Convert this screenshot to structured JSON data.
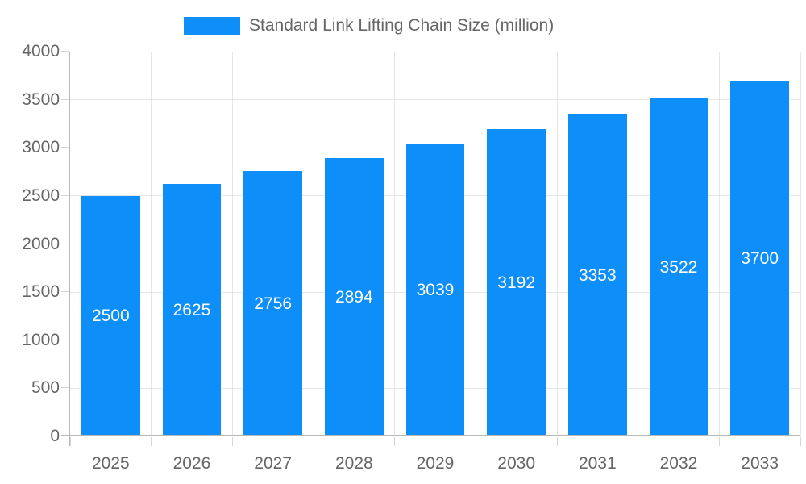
{
  "chart_data": {
    "type": "bar",
    "legend_label": "Standard Link Lifting Chain Size (million)",
    "legend_position": "top",
    "categories": [
      "2025",
      "2026",
      "2027",
      "2028",
      "2029",
      "2030",
      "2031",
      "2032",
      "2033"
    ],
    "values": [
      2500,
      2625,
      2756,
      2894,
      3039,
      3192,
      3353,
      3522,
      3700
    ],
    "title": "",
    "xlabel": "",
    "ylabel": "",
    "ylim": [
      0,
      4000
    ],
    "ytick_step": 500,
    "ytick_labels": [
      "0",
      "500",
      "1000",
      "1500",
      "2000",
      "2500",
      "3000",
      "3500",
      "4000"
    ],
    "grid": true,
    "bar_label_position": "inside-center",
    "colors": {
      "bar": "#0d8ef8",
      "bar_label": "#ffffff",
      "axis_text": "#666666",
      "gridline": "#e6e6e6",
      "tick": "#d6d6d6",
      "axis_line": "#b8b8b8",
      "background": "#ffffff"
    }
  }
}
